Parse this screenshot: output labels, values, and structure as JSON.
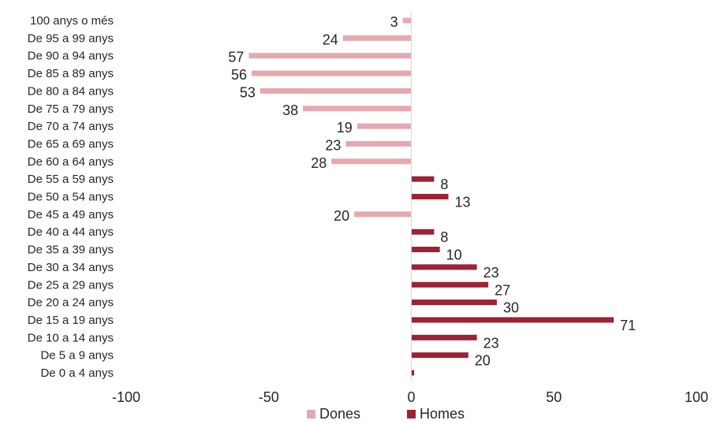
{
  "chart_data": {
    "type": "bar",
    "orientation": "horizontal",
    "title": "",
    "xlabel": "",
    "ylabel": "",
    "xlim": [
      -100,
      100
    ],
    "x_ticks": [
      -100,
      -50,
      0,
      50,
      100
    ],
    "grid": false,
    "legend_position": "bottom",
    "categories": [
      "100 anys o més",
      "De 95 a 99 anys",
      "De 90 a 94 anys",
      "De 85 a 89 anys",
      "De 80 a 84 anys",
      "De 75 a 79 anys",
      "De 70 a 74 anys",
      "De 65 a 69 anys",
      "De 60 a 64 anys",
      "De 55 a 59 anys",
      "De 50 a 54 anys",
      "De 45 a 49 anys",
      "De 40 a 44 anys",
      "De 35 a 39 anys",
      "De 30 a 34 anys",
      "De 25 a 29 anys",
      "De 20 a 24 anys",
      "De 15 a 19 anys",
      "De 10 a 14 anys",
      "De 5 a 9 anys",
      "De 0 a 4 anys"
    ],
    "series": [
      {
        "name": "Dones",
        "color": "#e6a8b0",
        "values": [
          -3,
          -24,
          -57,
          -56,
          -53,
          -38,
          -19,
          -23,
          -28,
          0,
          0,
          -20,
          0,
          0,
          0,
          0,
          0,
          0,
          0,
          0,
          0
        ],
        "labels": [
          "3",
          "24",
          "57",
          "56",
          "53",
          "38",
          "19",
          "23",
          "28",
          "",
          "",
          "20",
          "",
          "",
          "",
          "",
          "",
          "",
          "",
          "",
          ""
        ]
      },
      {
        "name": "Homes",
        "color": "#9b2335",
        "values": [
          0,
          0,
          0,
          0,
          0,
          0,
          0,
          0,
          0,
          8,
          13,
          0,
          8,
          10,
          23,
          27,
          30,
          71,
          23,
          20,
          1
        ],
        "labels": [
          "",
          "",
          "",
          "",
          "",
          "",
          "",
          "",
          "",
          "8",
          "13",
          "",
          "8",
          "10",
          "23",
          "27",
          "30",
          "71",
          "23",
          "20",
          ""
        ]
      }
    ]
  }
}
